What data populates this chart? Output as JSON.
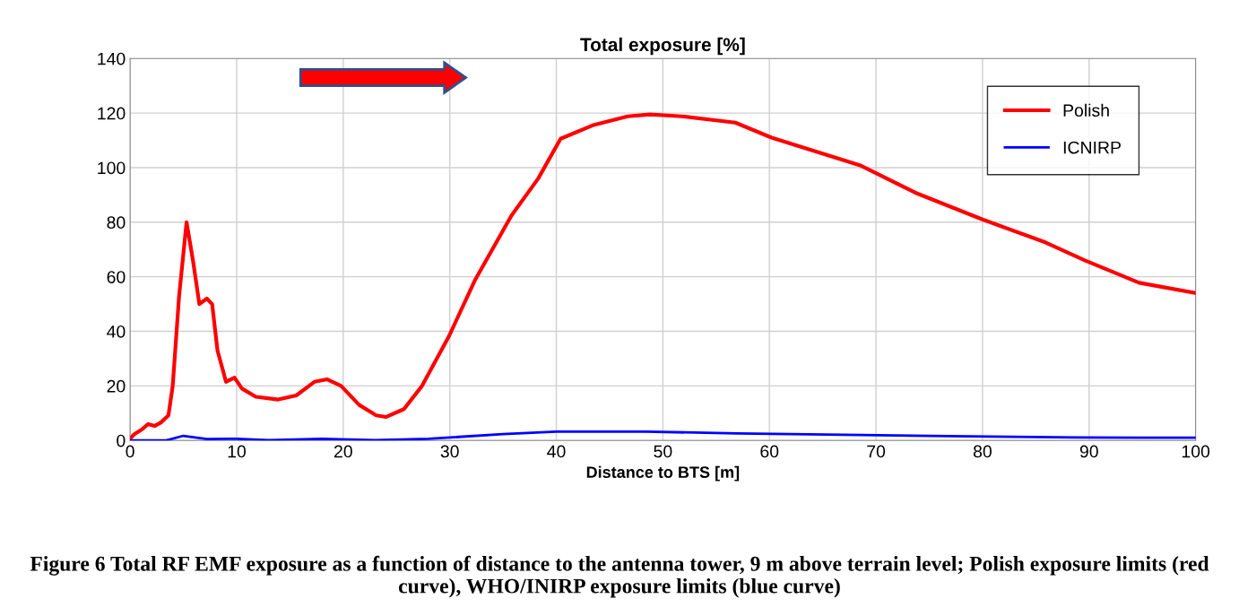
{
  "chart_data": {
    "type": "line",
    "title": "Total exposure [%]",
    "xlabel": "Distance to BTS [m]",
    "xlim": [
      0,
      100
    ],
    "xticks": [
      0,
      10,
      20,
      30,
      40,
      50,
      60,
      70,
      80,
      90,
      100
    ],
    "ylim": [
      0,
      140
    ],
    "yticks": [
      0,
      20,
      40,
      60,
      80,
      100,
      120,
      140
    ],
    "grid": true,
    "legend": "top right",
    "marker": "none",
    "line_style": "solid",
    "series": [
      {
        "name": "Polish",
        "color": "#ff0000",
        "x": [
          0,
          0.4,
          1.1,
          1.7,
          2.3,
          2.9,
          3.6,
          4,
          4.6,
          5.3,
          5.9,
          6.5,
          7.2,
          7.7,
          8.2,
          9,
          9.8,
          10.5,
          11.8,
          13.9,
          15.6,
          17.3,
          18.5,
          19.8,
          21.5,
          23.1,
          24,
          25.7,
          27.4,
          29.9,
          32.4,
          35.8,
          38.3,
          40.4,
          43.4,
          46.7,
          48.8,
          51.8,
          56.8,
          60.2,
          68.6,
          73.7,
          80,
          85.9,
          89.6,
          94.7,
          100
        ],
        "values": [
          0.7,
          2.3,
          4,
          6,
          5.3,
          6.6,
          9.2,
          20,
          53,
          80,
          66,
          50,
          52,
          50,
          33,
          21.5,
          23,
          19,
          16,
          15,
          16.5,
          21.5,
          22.4,
          20,
          13,
          9.2,
          8.6,
          11.5,
          20,
          38,
          59,
          82.5,
          96,
          110.6,
          115.5,
          118.8,
          119.5,
          118.8,
          116.5,
          111,
          100.7,
          90.8,
          81,
          72.6,
          66,
          57.8,
          54
        ]
      },
      {
        "name": "ICNIRP",
        "color": "#0000ff",
        "x": [
          0,
          3.4,
          5,
          7.2,
          10,
          13,
          18,
          23,
          28,
          35,
          40,
          48.4,
          57,
          68.6,
          78.7,
          88.8,
          100
        ],
        "values": [
          0,
          0,
          1.7,
          0.5,
          0.6,
          0.1,
          0.6,
          0.1,
          0.6,
          2.3,
          3.2,
          3.2,
          2.6,
          2,
          1.5,
          1.1,
          1
        ]
      }
    ],
    "annotations": [
      "Figure 6 Total RF EMF exposure as a function of distance to the antenna tower, 9 m above terrain level; Polish exposure limits (red curve), WHO/INIRP exposure limits (blue curve)"
    ]
  }
}
